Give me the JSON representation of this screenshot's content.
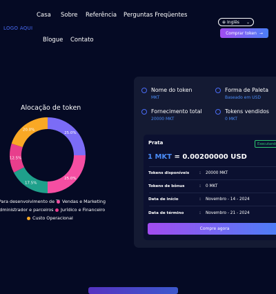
{
  "header": {
    "logo": "LOGO AQUI",
    "nav": [
      "Casa",
      "Sobre",
      "Referência",
      "Perguntas Freqüentes",
      "Blogue",
      "Contato"
    ],
    "language": "Inglês",
    "buy_label": "Comprar token"
  },
  "allocation": {
    "title": "Alocação de token",
    "legend": [
      {
        "label": "Para desenvolvimento de TI",
        "color": "#7b6cf6"
      },
      {
        "label": "Vendas e Marketing",
        "color": "#f54ea2"
      },
      {
        "label": "Administrador e parceiros",
        "color": "#1fa08b"
      },
      {
        "label": "Jurídico e Financeiro",
        "color": "#e83e8c"
      },
      {
        "label": "Custo Operacional",
        "color": "#f9a825"
      }
    ]
  },
  "chart_data": {
    "type": "pie",
    "categories": [
      "Para desenvolvimento de TI",
      "Vendas e Marketing",
      "Administrador e parceiros",
      "Jurídico e Financeiro",
      "Custo Operacional"
    ],
    "values": [
      25.0,
      25.0,
      17.5,
      12.5,
      20.0
    ],
    "labels": [
      "25.0%",
      "25.0%",
      "17.5%",
      "12.5%",
      "20.0%"
    ],
    "colors": [
      "#7b6cf6",
      "#f54ea2",
      "#1fa08b",
      "#e83e8c",
      "#f9a825"
    ]
  },
  "token_info": {
    "items": [
      {
        "label": "Nome do token",
        "value": "MKT"
      },
      {
        "label": "Forma de Paleta",
        "value": "Baseado em USD"
      },
      {
        "label": "Fornecimento total",
        "value": "20000 MKT"
      },
      {
        "label": "Tokens vendidos",
        "value": "0 MKT"
      }
    ]
  },
  "sale": {
    "stage": "Prata",
    "status": "Executando",
    "price_left": "1 MKT",
    "price_right": "= 0.00200000 USD",
    "rows": [
      {
        "label": "Tokens disponíveis",
        "value": "20000 MKT"
      },
      {
        "label": "Tokens de bônus",
        "value": "0 MKT"
      },
      {
        "label": "Data de início",
        "value": "Novembro - 14 - 2024"
      },
      {
        "label": "Data de término",
        "value": "Novembro - 21 - 2024"
      }
    ],
    "buy_label": "Compre agora"
  }
}
